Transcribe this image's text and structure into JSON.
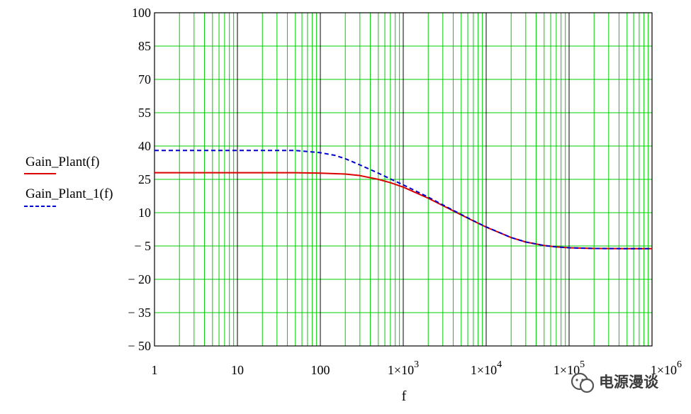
{
  "chart_data": {
    "type": "line",
    "xscale": "log",
    "xlim": [
      1,
      1000000
    ],
    "ylim": [
      -50,
      100
    ],
    "xlabel": "f",
    "ylabel": "",
    "grid": true,
    "legend_position": "left",
    "x_ticks": [
      1,
      10,
      100,
      1000,
      10000,
      100000,
      1000000
    ],
    "x_tick_labels": [
      {
        "text": "1",
        "base": "",
        "exp": ""
      },
      {
        "text": "10",
        "base": "",
        "exp": ""
      },
      {
        "text": "100",
        "base": "",
        "exp": ""
      },
      {
        "text": "",
        "base": "1×10",
        "exp": "3"
      },
      {
        "text": "",
        "base": "1×10",
        "exp": "4"
      },
      {
        "text": "",
        "base": "1×10",
        "exp": "5"
      },
      {
        "text": "",
        "base": "1×10",
        "exp": "6"
      }
    ],
    "y_ticks": [
      100,
      85,
      70,
      55,
      40,
      25,
      10,
      -5,
      -20,
      -35,
      -50
    ],
    "y_tick_labels": [
      "100",
      "85",
      "70",
      "55",
      "40",
      "25",
      "10",
      "− 5",
      "− 20",
      "− 35",
      "− 50"
    ],
    "colors": {
      "grid_minor": "#00cc00",
      "grid_major": "#000000",
      "series_1": "#dd0000",
      "series_2": "#0000cc"
    },
    "series": [
      {
        "name": "Gain_Plant(f)",
        "color": "#dd0000",
        "style": "solid",
        "x": [
          1,
          10,
          50,
          100,
          200,
          300,
          500,
          700,
          1000,
          2000,
          3000,
          5000,
          7000,
          10000,
          20000,
          30000,
          50000,
          70000,
          100000,
          200000,
          500000,
          1000000
        ],
        "y": [
          28,
          28,
          28,
          27.8,
          27.4,
          26.7,
          25,
          23.5,
          21.5,
          16.5,
          13.2,
          9,
          6.3,
          3.5,
          -1.2,
          -3.2,
          -4.8,
          -5.4,
          -5.8,
          -6.1,
          -6.2,
          -6.2
        ]
      },
      {
        "name": "Gain_Plant_1(f)",
        "color": "#0000cc",
        "style": "dashed",
        "x": [
          1,
          10,
          50,
          100,
          150,
          200,
          300,
          500,
          700,
          1000,
          2000,
          3000,
          5000,
          7000,
          10000,
          20000,
          30000,
          50000,
          70000,
          100000,
          200000,
          500000,
          1000000
        ],
        "y": [
          38,
          38,
          38,
          37,
          35.8,
          34.3,
          31.5,
          27.8,
          25.2,
          22.5,
          17,
          13.5,
          9.2,
          6.4,
          3.6,
          -1.2,
          -3.2,
          -4.8,
          -5.4,
          -5.8,
          -6.1,
          -6.2,
          -6.2
        ]
      }
    ]
  },
  "watermark": {
    "text": "电源漫谈",
    "icon": "wechat-icon"
  }
}
